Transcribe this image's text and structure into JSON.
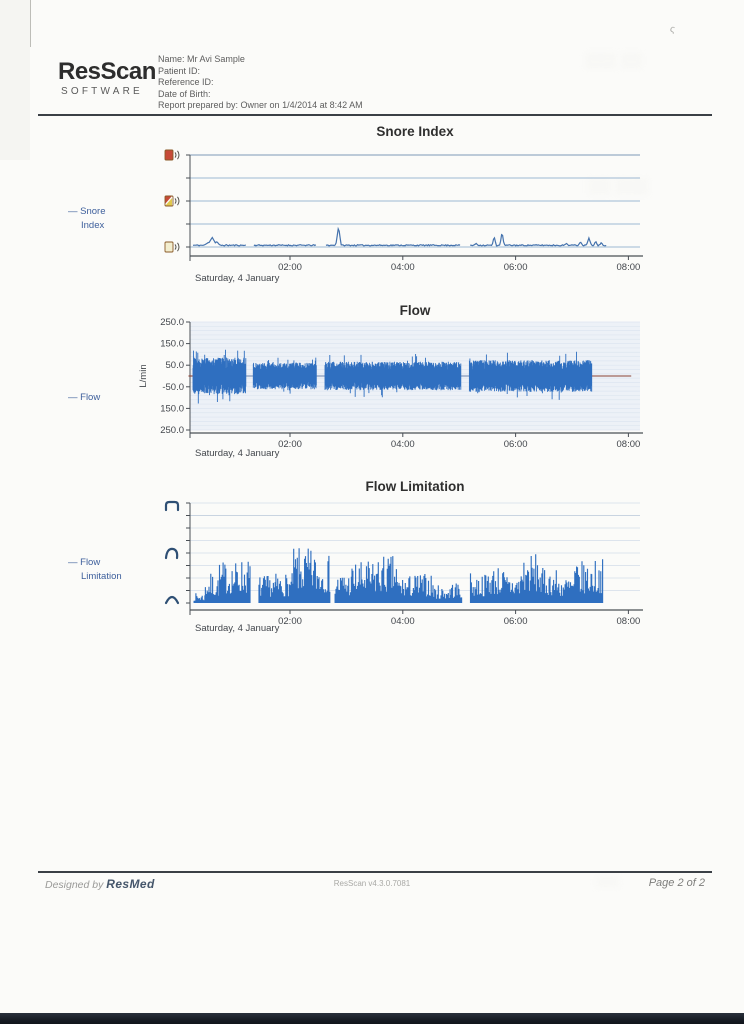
{
  "header": {
    "logo_title": "ResScan",
    "logo_subtitle": "SOFTWARE",
    "info_lines": [
      "Name: Mr Avi Sample",
      "Patient ID:",
      "Reference ID:",
      "Date of Birth:",
      "Report prepared by: Owner on 1/4/2014 at 8:42 AM"
    ]
  },
  "footer": {
    "designed_by": "Designed by",
    "brand": "ResMed",
    "version": "ResScan v4.3.0.7081",
    "page_label": "Page 2 of 2"
  },
  "colors": {
    "chart_blue": "#2f6fc0",
    "snore_line": "#4472ad",
    "grid_blue": "#9db8d2",
    "grid_light": "#d3dce8",
    "axis_dark": "#4a4f55",
    "tick_label": "#42464c",
    "legend_blue": "#3d5f9c",
    "title_color": "#2f2f2f",
    "flat_line_maroon": "#8b4236",
    "flow_bg": "#edf1f7",
    "flow_stripe": "#dde5f0",
    "footer_brand_navy": "#45566b"
  },
  "chart_data": [
    {
      "id": "snore",
      "type": "line",
      "title": "Snore Index",
      "legend_lines": [
        "— Snore",
        "Index"
      ],
      "date_label": "Saturday, 4 January",
      "x_axis": "time of night",
      "xticks": [
        {
          "label": "02:00",
          "t": 2
        },
        {
          "label": "04:00",
          "t": 4
        },
        {
          "label": "06:00",
          "t": 6
        },
        {
          "label": "08:00",
          "t": 8
        }
      ],
      "y_levels": 5,
      "ylim": [
        0,
        4
      ],
      "icons": [
        "snore-loud-icon",
        "snore-medium-icon",
        "snore-low-icon"
      ],
      "series": {
        "start": 0.28,
        "end": 7.62,
        "baseline": 0.05,
        "noise": 0.05,
        "seed": 11,
        "gaps": [
          [
            1.22,
            1.35
          ],
          [
            2.47,
            2.62
          ],
          [
            5.03,
            5.18
          ]
        ],
        "spikes": [
          [
            0.55,
            0.15,
            0.1
          ],
          [
            0.62,
            0.38,
            0.09
          ],
          [
            0.7,
            0.2,
            0.07
          ],
          [
            2.86,
            0.85,
            0.05
          ],
          [
            5.3,
            0.12,
            0.05
          ],
          [
            5.62,
            0.42,
            0.04
          ],
          [
            5.76,
            0.62,
            0.04
          ],
          [
            6.9,
            0.12,
            0.05
          ],
          [
            7.15,
            0.18,
            0.05
          ],
          [
            7.3,
            0.35,
            0.05
          ],
          [
            7.42,
            0.22,
            0.04
          ],
          [
            7.52,
            0.16,
            0.04
          ]
        ]
      }
    },
    {
      "id": "flow",
      "type": "waveform",
      "title": "Flow",
      "ylabel": "L/min",
      "legend_lines": [
        "— Flow"
      ],
      "date_label": "Saturday, 4 January",
      "xticks": [
        {
          "label": "02:00",
          "t": 2
        },
        {
          "label": "04:00",
          "t": 4
        },
        {
          "label": "06:00",
          "t": 6
        },
        {
          "label": "08:00",
          "t": 8
        }
      ],
      "yticks": [
        "250.0",
        "150.0",
        "50.0",
        "-50.0",
        "150.0",
        "250.0"
      ],
      "ylim": [
        -250,
        250
      ],
      "segments": [
        {
          "t0": 0.28,
          "t1": 1.22,
          "amp": 85
        },
        {
          "t0": 1.35,
          "t1": 2.47,
          "amp": 62
        },
        {
          "t0": 2.62,
          "t1": 5.03,
          "amp": 66
        },
        {
          "t0": 5.18,
          "t1": 7.35,
          "amp": 74
        }
      ],
      "flat": [
        [
          0.2,
          0.28
        ],
        [
          7.35,
          8.05
        ]
      ],
      "gap_line": [
        [
          1.22,
          1.35
        ],
        [
          2.47,
          2.62
        ],
        [
          5.03,
          5.18
        ]
      ],
      "seed": 23
    },
    {
      "id": "flim",
      "type": "bar",
      "title": "Flow Limitation",
      "legend_lines": [
        "— Flow",
        "Limitation"
      ],
      "date_label": "Saturday, 4 January",
      "xticks": [
        {
          "label": "02:00",
          "t": 2
        },
        {
          "label": "04:00",
          "t": 4
        },
        {
          "label": "06:00",
          "t": 6
        },
        {
          "label": "08:00",
          "t": 8
        }
      ],
      "ylim": [
        0,
        1
      ],
      "icons": [
        "flattened-breath-icon",
        "partially-flattened-breath-icon",
        "rounded-breath-icon"
      ],
      "clusters": [
        [
          0.3,
          0.5,
          0.1
        ],
        [
          0.5,
          0.75,
          0.3
        ],
        [
          0.75,
          1.05,
          0.42
        ],
        [
          1.05,
          1.3,
          0.45
        ],
        [
          1.45,
          1.75,
          0.28
        ],
        [
          1.75,
          2.05,
          0.3
        ],
        [
          2.05,
          2.45,
          0.55
        ],
        [
          2.45,
          2.72,
          0.48
        ],
        [
          2.8,
          3.1,
          0.32
        ],
        [
          3.1,
          3.55,
          0.42
        ],
        [
          3.55,
          3.9,
          0.48
        ],
        [
          3.9,
          4.2,
          0.28
        ],
        [
          4.2,
          4.55,
          0.3
        ],
        [
          4.55,
          4.85,
          0.18
        ],
        [
          4.85,
          5.05,
          0.22
        ],
        [
          5.2,
          5.5,
          0.3
        ],
        [
          5.5,
          5.8,
          0.38
        ],
        [
          5.8,
          6.1,
          0.3
        ],
        [
          6.1,
          6.45,
          0.5
        ],
        [
          6.45,
          6.75,
          0.35
        ],
        [
          6.75,
          7.05,
          0.28
        ],
        [
          7.05,
          7.35,
          0.42
        ],
        [
          7.35,
          7.55,
          0.45
        ]
      ],
      "seed": 7
    }
  ]
}
